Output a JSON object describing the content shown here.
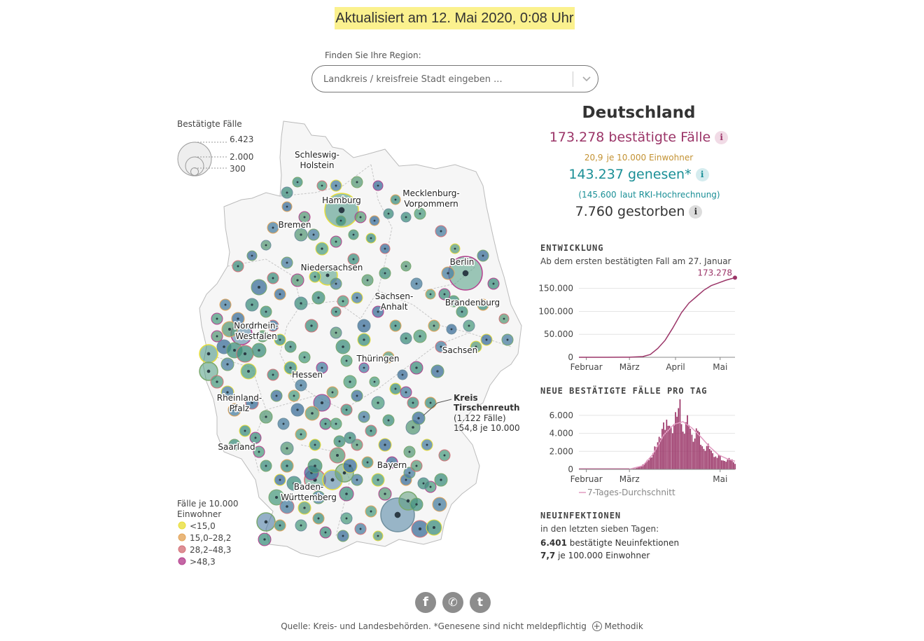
{
  "updated": "Aktualisiert am 12. Mai 2020, 0:08 Uhr",
  "finder": {
    "label": "Finden Sie Ihre Region:",
    "placeholder": "Landkreis / kreisfreie Stadt eingeben ..."
  },
  "map": {
    "size_legend": {
      "title": "Bestätigte Fälle",
      "values": [
        "6.423",
        "2.000",
        "300"
      ]
    },
    "color_legend": {
      "title_line1": "Fälle je 10.000",
      "title_line2": "Einwohner",
      "items": [
        {
          "label": "<15,0",
          "color": "#e8de3c"
        },
        {
          "label": "15,0–28,2",
          "color": "#e3a55a"
        },
        {
          "label": "28,2–48,3",
          "color": "#d5737a"
        },
        {
          "label": ">48,3",
          "color": "#b5418f"
        }
      ]
    },
    "states": {
      "schleswig_holstein": [
        "Schleswig-",
        "Holstein"
      ],
      "mecklenburg": [
        "Mecklenburg-",
        "Vorpommern"
      ],
      "hamburg": "Hamburg",
      "bremen": "Bremen",
      "niedersachsen": "Niedersachsen",
      "berlin": "Berlin",
      "sachsen_anhalt": [
        "Sachsen-",
        "Anhalt"
      ],
      "brandenburg": "Brandenburg",
      "nrw": [
        "Nordrhein-",
        "Westfalen"
      ],
      "sachsen": "Sachsen",
      "thueringen": "Thüringen",
      "hessen": "Hessen",
      "rheinland_pfalz": [
        "Rheinland-",
        "Pfalz"
      ],
      "saarland": "Saarland",
      "bayern": "Bayern",
      "bw": [
        "Baden-",
        "Württemberg"
      ]
    },
    "annotation": {
      "line1": "Kreis",
      "line2": "Tirschenreuth",
      "line3": "(1.122 Fälle)",
      "line4": "154,8 je 10.000"
    }
  },
  "summary": {
    "country": "Deutschland",
    "confirmed": "173.278 bestätigte Fälle",
    "per_10000_value": "20,9",
    "per_10000_label": "je 10.000 Einwohner",
    "recovered": "143.237 genesen*",
    "rki_value": "(145.600",
    "rki_label": "laut RKI-Hochrechnung)",
    "deaths": "7.760 gestorben",
    "info_glyph": "i",
    "colors": {
      "confirmed": "#9b3568",
      "per_10000": "#c39233",
      "recovered": "#1a8f96",
      "deaths": "#333333"
    }
  },
  "entwicklung": {
    "title": "ENTWICKLUNG",
    "subtitle": "Ab dem ersten bestätigten Fall am 27. Januar",
    "end_label": "173.278"
  },
  "neue_faelle": {
    "title": "NEUE BESTÄTIGTE FÄLLE PRO TAG",
    "legend": "7-Tages-Durchschnitt"
  },
  "neuinfektionen": {
    "title": "NEUINFEKTIONEN",
    "subtitle": "in den letzten sieben Tagen:",
    "count": "6.401",
    "count_label": "bestätigte Neuinfektionen",
    "rate": "7,7",
    "rate_label": "je 100.000 Einwohner"
  },
  "social": {
    "facebook": "f",
    "whatsapp": "✆",
    "twitter": "t"
  },
  "footer": {
    "source": "Quelle: Kreis- und Landesbehörden. *Genesene sind nicht meldepflichtig",
    "method_icon": "+",
    "method": "Methodik"
  },
  "chart_data": [
    {
      "type": "line",
      "title": "ENTWICKLUNG",
      "subtitle": "Ab dem ersten bestätigten Fall am 27. Januar",
      "x_ticks": [
        "Februar",
        "März",
        "April",
        "Mai"
      ],
      "y_ticks": [
        "0",
        "50.000",
        "100.000",
        "150.000"
      ],
      "ylim": [
        0,
        180000
      ],
      "series": [
        {
          "x": [
            "2020-01-27",
            "2020-02-15",
            "2020-03-01",
            "2020-03-10",
            "2020-03-15",
            "2020-03-20",
            "2020-03-25",
            "2020-03-30",
            "2020-04-05",
            "2020-04-10",
            "2020-04-15",
            "2020-04-20",
            "2020-04-25",
            "2020-04-30",
            "2020-05-05",
            "2020-05-11"
          ],
          "values": [
            1,
            16,
            130,
            1500,
            6000,
            19000,
            37000,
            63000,
            97000,
            118000,
            132000,
            146000,
            156000,
            162000,
            168000,
            173278
          ]
        }
      ],
      "end_label": "173.278"
    },
    {
      "type": "bar",
      "title": "NEUE BESTÄTIGTE FÄLLE PRO TAG",
      "x_ticks": [
        "Februar",
        "März",
        "Mai"
      ],
      "y_ticks": [
        "0",
        "2.000",
        "4.000",
        "6.000"
      ],
      "ylim": [
        0,
        7000
      ],
      "series": [
        {
          "name": "neue Fälle",
          "x": [
            "2020-03-01",
            "2020-03-05",
            "2020-03-09",
            "2020-03-12",
            "2020-03-15",
            "2020-03-17",
            "2020-03-19",
            "2020-03-21",
            "2020-03-23",
            "2020-03-25",
            "2020-03-27",
            "2020-03-29",
            "2020-03-31",
            "2020-04-02",
            "2020-04-04",
            "2020-04-06",
            "2020-04-08",
            "2020-04-10",
            "2020-04-12",
            "2020-04-14",
            "2020-04-16",
            "2020-04-18",
            "2020-04-20",
            "2020-04-22",
            "2020-04-24",
            "2020-04-26",
            "2020-04-28",
            "2020-04-30",
            "2020-05-02",
            "2020-05-04",
            "2020-05-06",
            "2020-05-08",
            "2020-05-10",
            "2020-05-11"
          ],
          "values": [
            30,
            120,
            350,
            700,
            1200,
            1800,
            2700,
            3100,
            4200,
            4500,
            5500,
            4100,
            4700,
            6200,
            6500,
            3800,
            5200,
            5400,
            3300,
            3200,
            4400,
            3100,
            2000,
            2500,
            2400,
            1500,
            1300,
            1600,
            1100,
            800,
            1000,
            1100,
            900,
            600
          ]
        },
        {
          "name": "7-Tages-Durchschnitt",
          "x": [
            "2020-03-01",
            "2020-03-10",
            "2020-03-17",
            "2020-03-24",
            "2020-03-31",
            "2020-04-06",
            "2020-04-12",
            "2020-04-18",
            "2020-04-24",
            "2020-04-30",
            "2020-05-06",
            "2020-05-11"
          ],
          "values": [
            20,
            400,
            1700,
            3800,
            5000,
            5300,
            4600,
            3600,
            2500,
            1600,
            1150,
            900
          ]
        }
      ],
      "legend": "7-Tages-Durchschnitt"
    }
  ]
}
